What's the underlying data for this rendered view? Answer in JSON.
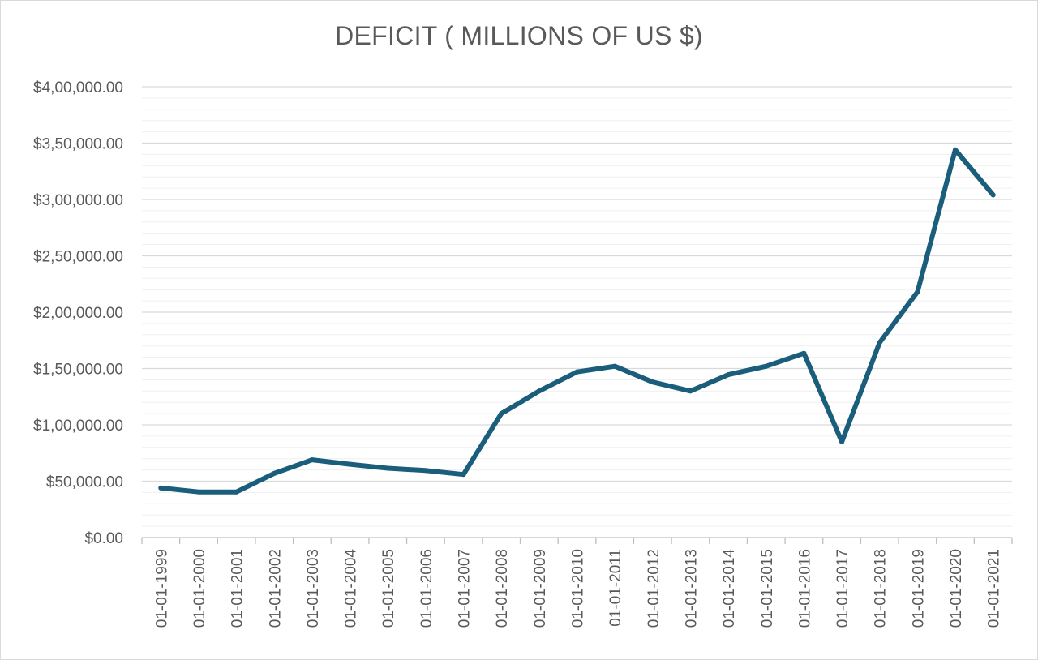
{
  "chart_data": {
    "type": "line",
    "title": "DEFICIT ( MILLIONS OF US $)",
    "xlabel": "",
    "ylabel": "",
    "categories": [
      "01-01-1999",
      "01-01-2000",
      "01-01-2001",
      "01-01-2002",
      "01-01-2003",
      "01-01-2004",
      "01-01-2005",
      "01-01-2006",
      "01-01-2007",
      "01-01-2008",
      "01-01-2009",
      "01-01-2010",
      "01-01-2011",
      "01-01-2012",
      "01-01-2013",
      "01-01-2014",
      "01-01-2015",
      "01-01-2016",
      "01-01-2017",
      "01-01-2018",
      "01-01-2019",
      "01-01-2020",
      "01-01-2021"
    ],
    "series": [
      {
        "color": "#1b5e7b",
        "values": [
          44000,
          40500,
          40500,
          57000,
          69000,
          65000,
          61500,
          59500,
          56000,
          110000,
          130000,
          147000,
          152000,
          138000,
          130000,
          144500,
          152000,
          163500,
          85000,
          173000,
          218000,
          344000,
          304000
        ]
      }
    ],
    "ylim": [
      0,
      400000
    ],
    "y_major_ticks": [
      0,
      50000,
      100000,
      150000,
      200000,
      250000,
      300000,
      350000,
      400000
    ],
    "y_tick_labels": [
      "$0.00",
      "$50,000.00",
      "$1,00,000.00",
      "$1,50,000.00",
      "$2,00,000.00",
      "$2,50,000.00",
      "$3,00,000.00",
      "$3,50,000.00",
      "$4,00,000.00"
    ],
    "grid": true,
    "minor_grid": true,
    "legend": "none",
    "colors": {
      "line": "#1b5e7b",
      "major_grid": "#d9d9d9",
      "minor_grid": "#efefef",
      "axis": "#bfbfbf",
      "text": "#595959"
    }
  }
}
